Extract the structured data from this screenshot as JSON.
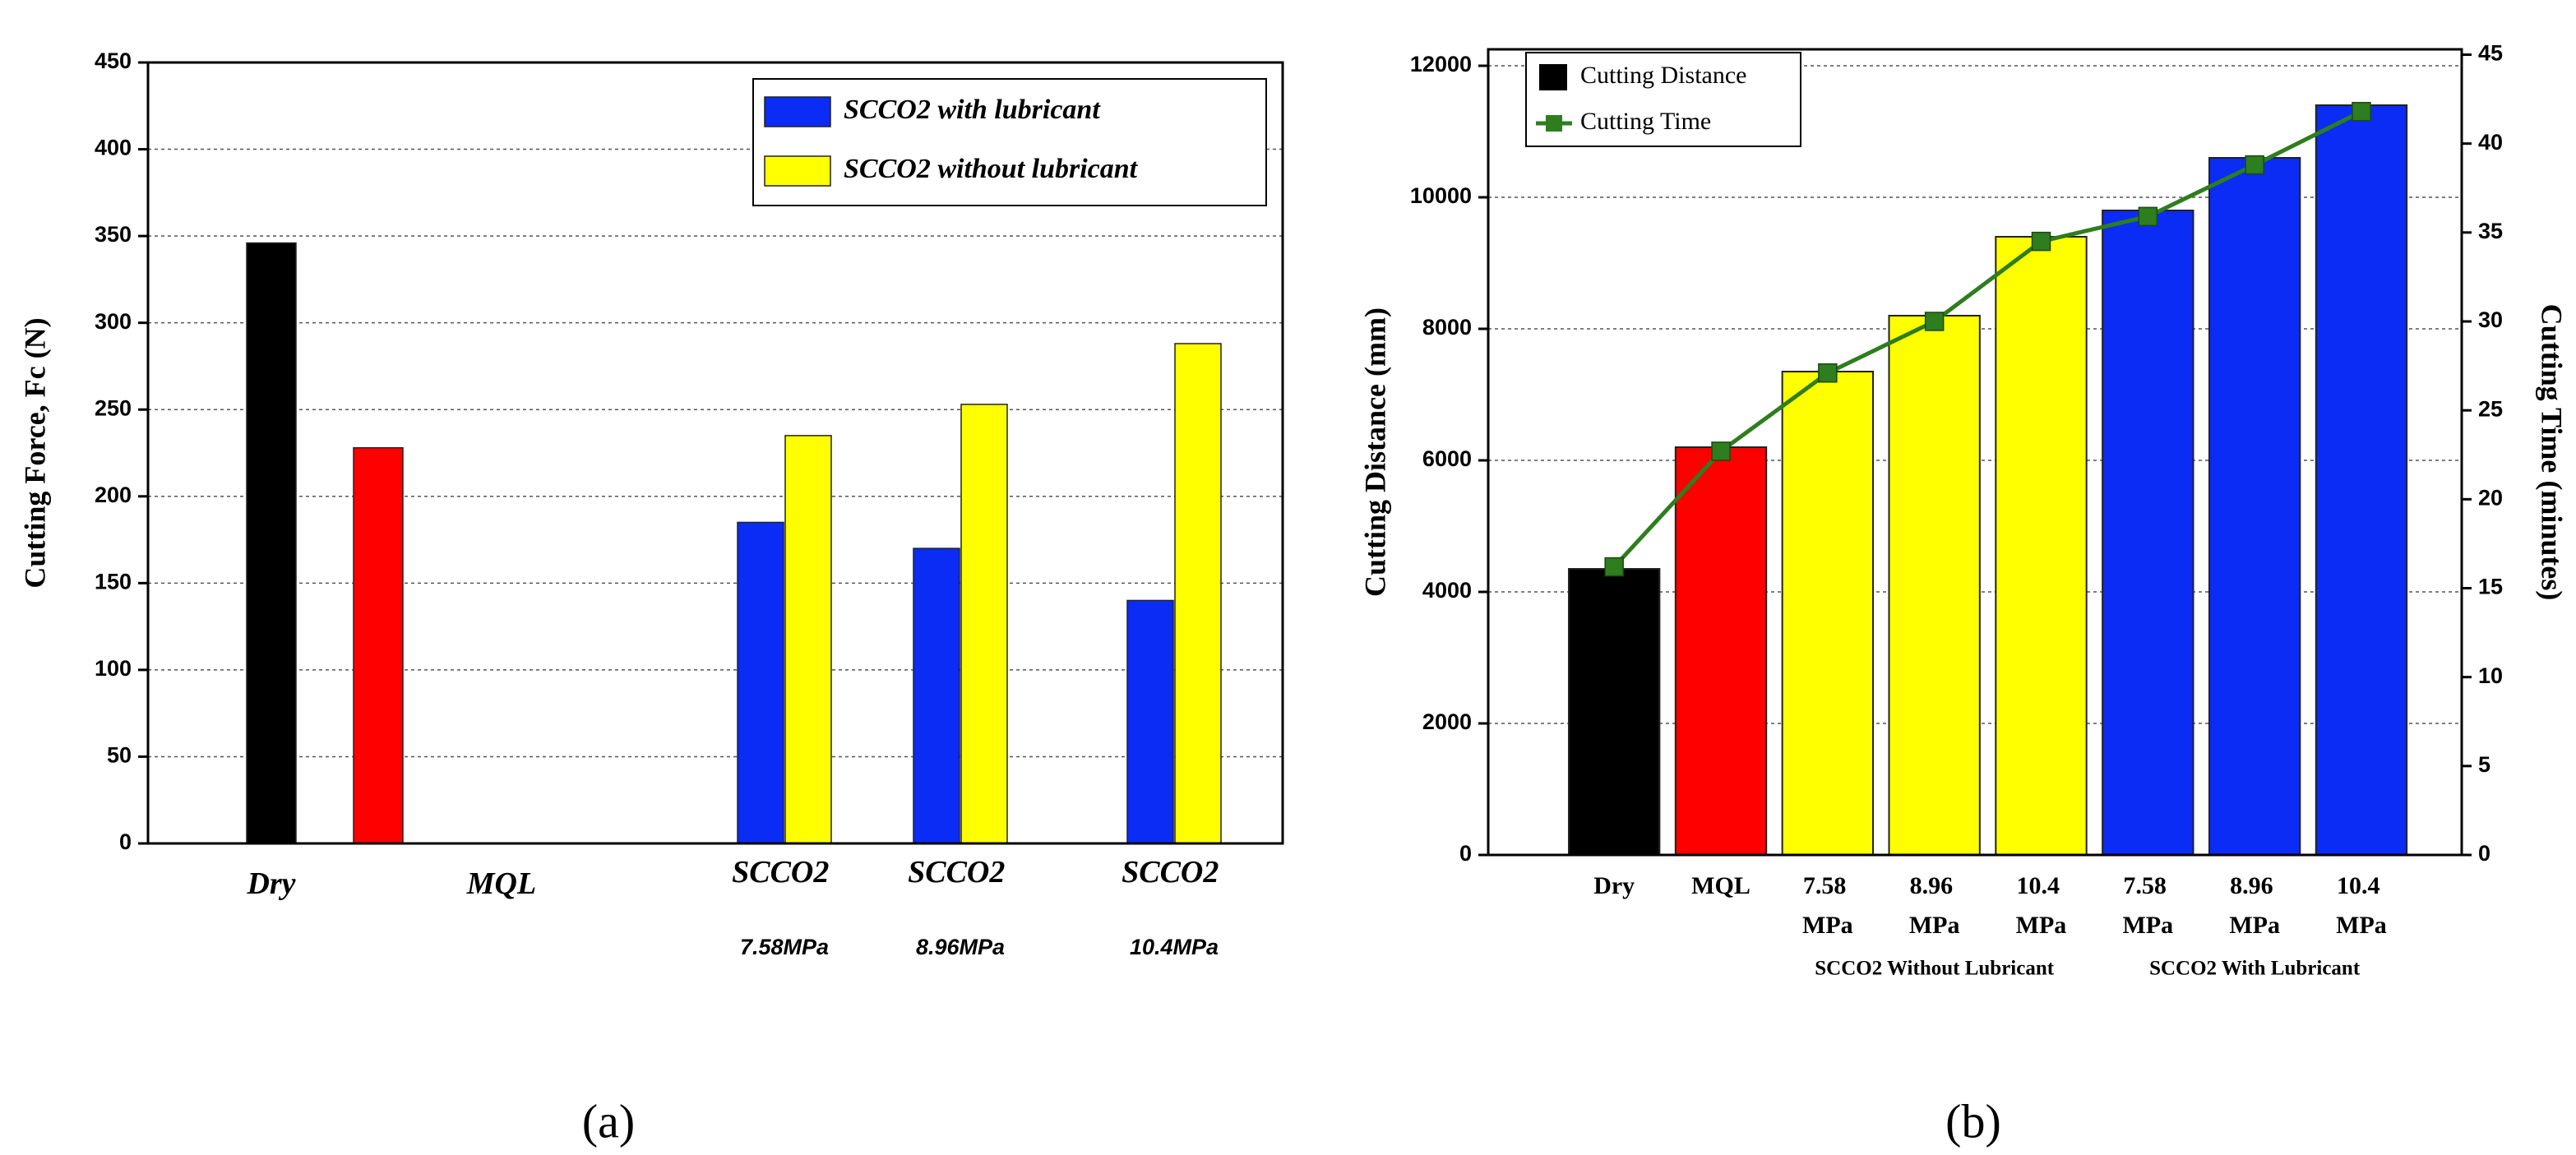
{
  "chart_data": [
    {
      "type": "bar",
      "caption": "(a)",
      "ylabel": "Cutting Force, Fc (N)",
      "categories": [
        "Dry",
        "MQL",
        "SCCO2 7.58MPa",
        "SCCO2 8.96MPa",
        "SCCO2 10.4MPa"
      ],
      "values": [
        346,
        228,
        null,
        null,
        null
      ],
      "bar_colors": [
        "#000000",
        "#ff0000",
        null,
        null,
        null
      ],
      "series": [
        {
          "name": "SCCO2 with lubricant",
          "color": "#0a2cf5",
          "values": [
            null,
            null,
            185,
            170,
            140
          ]
        },
        {
          "name": "SCCO2 without lubricant",
          "color": "#ffff00",
          "values": [
            null,
            null,
            235,
            253,
            288
          ]
        }
      ],
      "ylim": [
        0,
        450
      ],
      "yticks": [
        0,
        50,
        100,
        150,
        200,
        250,
        300,
        350,
        400,
        450
      ],
      "grid": true,
      "legend": "upper right"
    },
    {
      "type": "bar_line",
      "caption": "(b)",
      "ylabel": "Cutting Distance (mm)",
      "y2label": "Cutting Time (minutes)",
      "categories": [
        "Dry",
        "MQL",
        "7.58 MPa",
        "8.96 MPa",
        "10.4 MPa",
        "7.58 MPa",
        "8.96 MPa",
        "10.4 MPa"
      ],
      "group_labels": [
        "SCCO2 Without Lubricant",
        "SCCO2 With Lubricant"
      ],
      "series": [
        {
          "name": "Cutting Distance",
          "color": "#000000",
          "bar_colors": [
            "#000000",
            "#ff0000",
            "#ffff00",
            "#ffff00",
            "#ffff00",
            "#0a2cf5",
            "#0a2cf5",
            "#0a2cf5"
          ],
          "values": [
            4350,
            6200,
            7350,
            8200,
            9400,
            9800,
            10600,
            11400
          ]
        },
        {
          "name": "Cutting Time",
          "type": "line",
          "axis": "y2",
          "color": "#2e7d1e",
          "values": [
            16.2,
            22.7,
            27.1,
            30,
            34.5,
            35.9,
            38.8,
            41.8
          ]
        }
      ],
      "ylim": [
        0,
        12250
      ],
      "yticks": [
        0,
        2000,
        4000,
        6000,
        8000,
        10000,
        12000
      ],
      "y2lim": [
        0,
        45.3
      ],
      "y2ticks": [
        0,
        5,
        10,
        15,
        20,
        25,
        30,
        35,
        40,
        45
      ],
      "grid": true,
      "legend": "upper left"
    }
  ]
}
